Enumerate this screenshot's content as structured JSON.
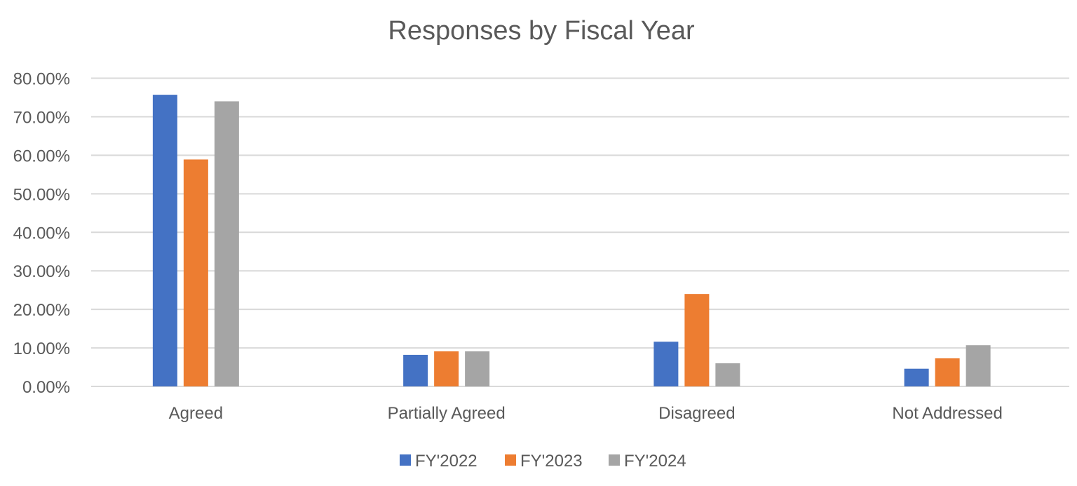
{
  "chart_data": {
    "type": "bar",
    "title": "Responses by Fiscal Year",
    "xlabel": "",
    "ylabel": "",
    "categories": [
      "Agreed",
      "Partially Agreed",
      "Disagreed",
      "Not Addressed"
    ],
    "series": [
      {
        "name": "FY'2022",
        "color": "#4472C4",
        "values": [
          75.7,
          8.2,
          11.6,
          4.6
        ]
      },
      {
        "name": "FY'2023",
        "color": "#ED7D31",
        "values": [
          58.9,
          9.1,
          24.0,
          7.3
        ]
      },
      {
        "name": "FY'2024",
        "color": "#A5A5A5",
        "values": [
          74.0,
          9.1,
          6.0,
          10.7
        ]
      }
    ],
    "ylim": [
      0,
      80
    ],
    "yticks": [
      "0.00%",
      "10.00%",
      "20.00%",
      "30.00%",
      "40.00%",
      "50.00%",
      "60.00%",
      "70.00%",
      "80.00%"
    ],
    "y_unit": "percent",
    "grid": true,
    "legend_position": "bottom"
  }
}
